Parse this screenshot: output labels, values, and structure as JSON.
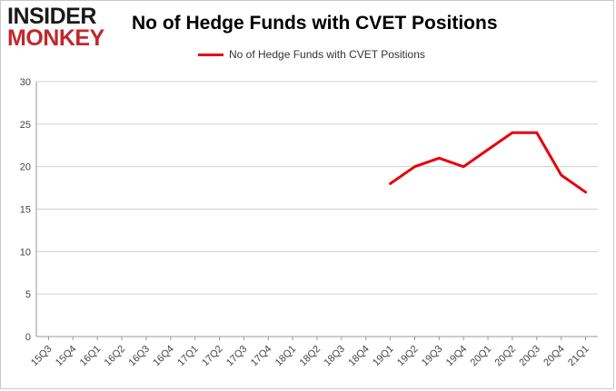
{
  "logo": {
    "line1": "INSIDER",
    "line2": "MONKEY"
  },
  "chart_data": {
    "type": "line",
    "title": "No of Hedge Funds with CVET Positions",
    "xlabel": "",
    "ylabel": "",
    "categories": [
      "15Q3",
      "15Q4",
      "16Q1",
      "16Q2",
      "16Q3",
      "16Q4",
      "17Q1",
      "17Q2",
      "17Q3",
      "17Q4",
      "18Q1",
      "18Q2",
      "18Q3",
      "18Q4",
      "19Q1",
      "19Q2",
      "19Q3",
      "19Q4",
      "20Q1",
      "20Q2",
      "20Q3",
      "20Q4",
      "21Q1"
    ],
    "series": [
      {
        "name": "No of Hedge Funds with CVET Positions",
        "color": "#e8000b",
        "values": [
          null,
          null,
          null,
          null,
          null,
          null,
          null,
          null,
          null,
          null,
          null,
          null,
          null,
          null,
          18,
          20,
          21,
          20,
          22,
          24,
          24,
          19,
          17
        ]
      }
    ],
    "ylim": [
      0,
      30
    ],
    "yticks": [
      0,
      5,
      10,
      15,
      20,
      25,
      30
    ],
    "grid": true,
    "legend_position": "top-center"
  }
}
